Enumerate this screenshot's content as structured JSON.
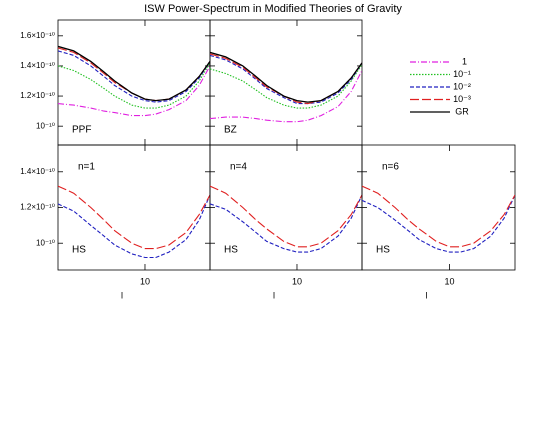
{
  "title": "ISW Power-Spectrum in Modified Theories of Gravity",
  "chart_data": [
    {
      "type": "line",
      "annotations": [
        "PPF"
      ],
      "x": [
        2.3,
        3,
        4,
        5,
        6,
        8,
        10,
        12,
        15,
        20,
        25,
        30
      ],
      "xlim": [
        2.3,
        30
      ],
      "xticks": [
        10
      ],
      "ylim": [
        8.75e-11,
        1.705e-10
      ],
      "yticks": [
        {
          "value": 1e-10,
          "label": "10⁻¹⁰"
        },
        {
          "value": 1.2e-10,
          "label": "1.2×10⁻¹⁰"
        },
        {
          "value": 1.4e-10,
          "label": "1.4×10⁻¹⁰"
        },
        {
          "value": 1.6e-10,
          "label": "1.6×10⁻¹⁰"
        }
      ],
      "series": [
        {
          "name": "1",
          "color": "#e020e0",
          "style": "dashdot",
          "values": [
            1.15e-10,
            1.14e-10,
            1.12e-10,
            1.1e-10,
            1.09e-10,
            1.07e-10,
            1.07e-10,
            1.08e-10,
            1.11e-10,
            1.17e-10,
            1.27e-10,
            1.4e-10
          ]
        },
        {
          "name": "10⁻¹",
          "color": "#20c020",
          "style": "dotted",
          "values": [
            1.4e-10,
            1.37e-10,
            1.31e-10,
            1.25e-10,
            1.2e-10,
            1.14e-10,
            1.12e-10,
            1.12e-10,
            1.14e-10,
            1.2e-10,
            1.3e-10,
            1.42e-10
          ]
        },
        {
          "name": "10⁻²",
          "color": "#2020c0",
          "style": "dashed",
          "values": [
            1.5e-10,
            1.47e-10,
            1.4e-10,
            1.33e-10,
            1.27e-10,
            1.2e-10,
            1.17e-10,
            1.16e-10,
            1.17e-10,
            1.23e-10,
            1.32e-10,
            1.43e-10
          ]
        },
        {
          "name": "10⁻³",
          "color": "#e02020",
          "style": "longdash",
          "values": [
            1.52e-10,
            1.49e-10,
            1.42e-10,
            1.35e-10,
            1.29e-10,
            1.22e-10,
            1.18e-10,
            1.17e-10,
            1.18e-10,
            1.24e-10,
            1.33e-10,
            1.43e-10
          ]
        },
        {
          "name": "GR",
          "color": "#000000",
          "style": "solid",
          "values": [
            1.53e-10,
            1.5e-10,
            1.43e-10,
            1.36e-10,
            1.3e-10,
            1.22e-10,
            1.18e-10,
            1.17e-10,
            1.18e-10,
            1.24e-10,
            1.33e-10,
            1.43e-10
          ]
        }
      ]
    },
    {
      "type": "line",
      "annotations": [
        "BZ"
      ],
      "x": [
        2.3,
        3,
        4,
        5,
        6,
        8,
        10,
        12,
        15,
        20,
        25,
        30
      ],
      "xlim": [
        2.3,
        30
      ],
      "xticks": [
        10
      ],
      "ylim": [
        8.75e-11,
        1.705e-10
      ],
      "series": [
        {
          "color": "#e020e0",
          "style": "dashdot",
          "values": [
            1.05e-10,
            1.06e-10,
            1.06e-10,
            1.05e-10,
            1.04e-10,
            1.03e-10,
            1.03e-10,
            1.04e-10,
            1.07e-10,
            1.13e-10,
            1.23e-10,
            1.37e-10
          ]
        },
        {
          "color": "#20c020",
          "style": "dotted",
          "values": [
            1.38e-10,
            1.35e-10,
            1.3e-10,
            1.24e-10,
            1.19e-10,
            1.14e-10,
            1.12e-10,
            1.12e-10,
            1.14e-10,
            1.2e-10,
            1.3e-10,
            1.41e-10
          ]
        },
        {
          "color": "#2020c0",
          "style": "dashed",
          "values": [
            1.47e-10,
            1.44e-10,
            1.38e-10,
            1.31e-10,
            1.25e-10,
            1.19e-10,
            1.15e-10,
            1.15e-10,
            1.16e-10,
            1.22e-10,
            1.31e-10,
            1.42e-10
          ]
        },
        {
          "color": "#e02020",
          "style": "longdash",
          "values": [
            1.48e-10,
            1.45e-10,
            1.39e-10,
            1.32e-10,
            1.26e-10,
            1.2e-10,
            1.16e-10,
            1.15e-10,
            1.17e-10,
            1.23e-10,
            1.32e-10,
            1.42e-10
          ]
        },
        {
          "color": "#000000",
          "style": "solid",
          "values": [
            1.49e-10,
            1.46e-10,
            1.4e-10,
            1.33e-10,
            1.27e-10,
            1.2e-10,
            1.17e-10,
            1.16e-10,
            1.17e-10,
            1.23e-10,
            1.32e-10,
            1.42e-10
          ]
        }
      ]
    },
    {
      "type": "line",
      "annotations": [
        "n=1",
        "HS"
      ],
      "xlabel": "l",
      "x": [
        2.3,
        3,
        4,
        5,
        6,
        8,
        10,
        12,
        15,
        20,
        25,
        30
      ],
      "xlim": [
        2.3,
        30
      ],
      "xticks": [
        10
      ],
      "ylim": [
        8.5e-11,
        1.55e-10
      ],
      "yticks": [
        {
          "value": 1e-10,
          "label": "10⁻¹⁰"
        },
        {
          "value": 1.2e-10,
          "label": "1.2×10⁻¹⁰"
        },
        {
          "value": 1.4e-10,
          "label": "1.4×10⁻¹⁰"
        }
      ],
      "series": [
        {
          "color": "#2020c0",
          "style": "dashed",
          "values": [
            1.22e-10,
            1.18e-10,
            1.1e-10,
            1.04e-10,
            9.9e-11,
            9.4e-11,
            9.2e-11,
            9.2e-11,
            9.5e-11,
            1.02e-10,
            1.13e-10,
            1.27e-10
          ]
        },
        {
          "color": "#e02020",
          "style": "longdash",
          "values": [
            1.32e-10,
            1.28e-10,
            1.2e-10,
            1.13e-10,
            1.07e-10,
            1e-10,
            9.7e-11,
            9.7e-11,
            9.9e-11,
            1.06e-10,
            1.16e-10,
            1.27e-10
          ]
        }
      ]
    },
    {
      "type": "line",
      "annotations": [
        "n=4",
        "HS"
      ],
      "xlabel": "l",
      "x": [
        2.3,
        3,
        4,
        5,
        6,
        8,
        10,
        12,
        15,
        20,
        25,
        30
      ],
      "xlim": [
        2.3,
        30
      ],
      "xticks": [
        10
      ],
      "ylim": [
        8.5e-11,
        1.55e-10
      ],
      "series": [
        {
          "color": "#2020c0",
          "style": "dashed",
          "values": [
            1.22e-10,
            1.19e-10,
            1.12e-10,
            1.06e-10,
            1.01e-10,
            9.7e-11,
            9.5e-11,
            9.5e-11,
            9.7e-11,
            1.04e-10,
            1.14e-10,
            1.27e-10
          ]
        },
        {
          "color": "#e02020",
          "style": "longdash",
          "values": [
            1.32e-10,
            1.28e-10,
            1.2e-10,
            1.13e-10,
            1.08e-10,
            1.01e-10,
            9.8e-11,
            9.8e-11,
            1e-10,
            1.07e-10,
            1.16e-10,
            1.27e-10
          ]
        }
      ]
    },
    {
      "type": "line",
      "annotations": [
        "n=6",
        "HS"
      ],
      "xlabel": "l",
      "x": [
        2.3,
        3,
        4,
        5,
        6,
        8,
        10,
        12,
        15,
        20,
        25,
        30
      ],
      "xlim": [
        2.3,
        30
      ],
      "xticks": [
        10
      ],
      "ylim": [
        8.5e-11,
        1.55e-10
      ],
      "series": [
        {
          "color": "#2020c0",
          "style": "dashed",
          "values": [
            1.24e-10,
            1.2e-10,
            1.13e-10,
            1.07e-10,
            1.02e-10,
            9.7e-11,
            9.5e-11,
            9.5e-11,
            9.7e-11,
            1.04e-10,
            1.14e-10,
            1.27e-10
          ]
        },
        {
          "color": "#e02020",
          "style": "longdash",
          "values": [
            1.32e-10,
            1.28e-10,
            1.2e-10,
            1.13e-10,
            1.08e-10,
            1.01e-10,
            9.8e-11,
            9.8e-11,
            1e-10,
            1.07e-10,
            1.16e-10,
            1.27e-10
          ]
        }
      ]
    }
  ]
}
